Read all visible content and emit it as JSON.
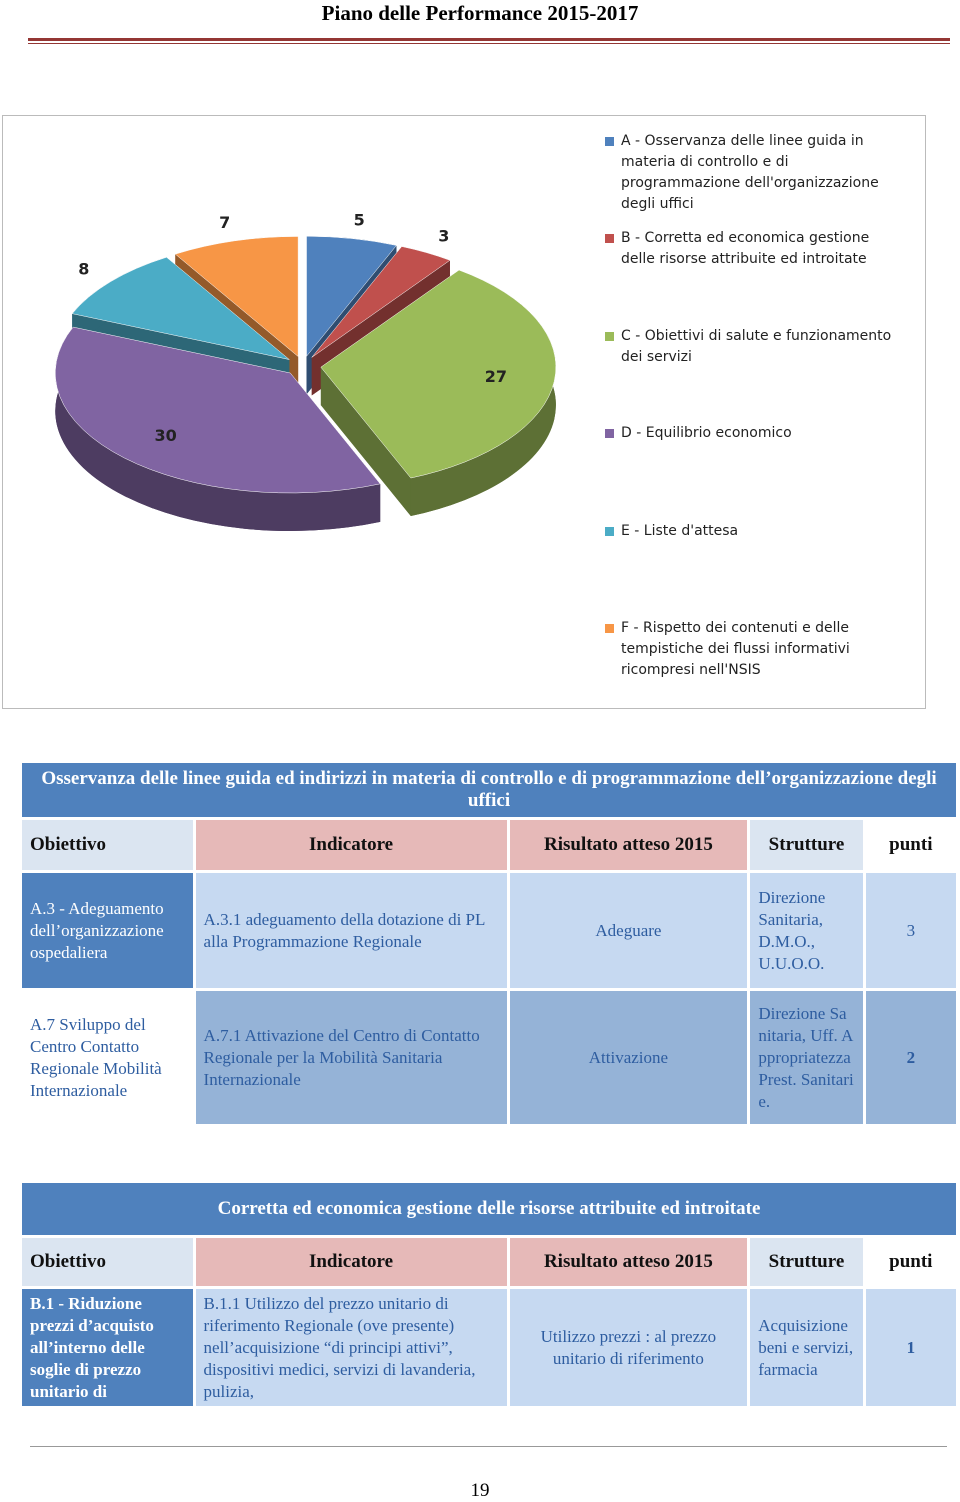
{
  "header": {
    "title": "Piano delle Performance 2015-2017"
  },
  "chart_data": {
    "type": "pie",
    "categories": [
      "A - Osservanza delle linee guida in materia di controllo e di programmazione dell'organizzazione degli uffici",
      "B - Corretta ed economica gestione delle risorse attribuite ed introitate",
      "C - Obiettivi di salute e funzionamento dei servizi",
      "D - Equilibrio economico",
      "E - Liste d'attesa",
      "F - Rispetto dei contenuti e delle tempistiche dei flussi informativi ricompresi nell'NSIS"
    ],
    "values": [
      5,
      3,
      27,
      30,
      8,
      7
    ],
    "colors": [
      "#4f81bd",
      "#c0504d",
      "#9bbb59",
      "#8064a2",
      "#4bacc6",
      "#f79646"
    ]
  },
  "tables": [
    {
      "title": "Osservanza delle linee guida ed indirizzi in materia di controllo e di programmazione dell’organizzazione degli uffici",
      "columns": [
        "Obiettivo",
        "Indicatore",
        "Risultato atteso 2015",
        "Strutture",
        "punti"
      ],
      "rows": [
        [
          "A.3 - Adeguamento dell’organizzazione ospedaliera",
          "A.3.1 adeguamento della dotazione di PL alla Programmazione Regionale",
          "Adeguare",
          "Direzione Sanitaria, D.M.O., U.U.O.O.",
          3
        ],
        [
          "A.7 Sviluppo del Centro Contatto Regionale Mobilità Internazionale",
          "A.7.1 Attivazione del Centro di Contatto Regionale per la Mobilità Sanitaria Internazionale",
          "Attivazione",
          "Direzione Sanitaria, Uff. Appropriatezza Prest. Sanitarie.",
          2
        ]
      ]
    },
    {
      "title": "Corretta ed economica gestione delle risorse attribuite ed introitate",
      "columns": [
        "Obiettivo",
        "Indicatore",
        "Risultato atteso 2015",
        "Strutture",
        "punti"
      ],
      "rows": [
        [
          "B.1 - Riduzione prezzi d’acquisto all’interno delle soglie di prezzo unitario di",
          "B.1.1 Utilizzo del prezzo unitario di riferimento Regionale (ove presente) nell’acquisizione “di principi attivi”, dispositivi medici, servizi di lavanderia, pulizia,",
          "Utilizzo prezzi : al prezzo unitario di riferimento",
          "Acquisizione beni e servizi, farmacia",
          1
        ]
      ]
    }
  ],
  "footer": {
    "page": 19
  }
}
